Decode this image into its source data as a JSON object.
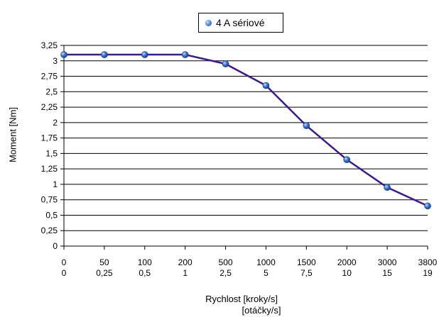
{
  "chart_data": {
    "type": "line",
    "legend": "4 A sériové",
    "legend_placement": "top-center",
    "ylabel": "Moment [Nm]",
    "xlabel_line1": "Rychlost [kroky/s]",
    "xlabel_line2": "[otáčky/s]",
    "x_ticks_primary": [
      "0",
      "50",
      "100",
      "200",
      "500",
      "1000",
      "1500",
      "2000",
      "3000",
      "3800"
    ],
    "x_ticks_secondary": [
      "0",
      "0,25",
      "0,5",
      "1",
      "2,5",
      "5",
      "7,5",
      "10",
      "15",
      "19"
    ],
    "y_ticks": [
      "0",
      "0,25",
      "0,5",
      "0,75",
      "1",
      "1,25",
      "1,5",
      "1,75",
      "2",
      "2,25",
      "2,5",
      "2,75",
      "3",
      "3,25"
    ],
    "ylim": [
      0,
      3.25
    ],
    "grid": true,
    "series": [
      {
        "name": "4 A sériové",
        "values": [
          3.1,
          3.1,
          3.1,
          3.1,
          2.95,
          2.6,
          1.95,
          1.4,
          0.95,
          0.65
        ]
      }
    ],
    "colors": {
      "line": "#3a1896",
      "marker": "#3f7fe0"
    }
  }
}
